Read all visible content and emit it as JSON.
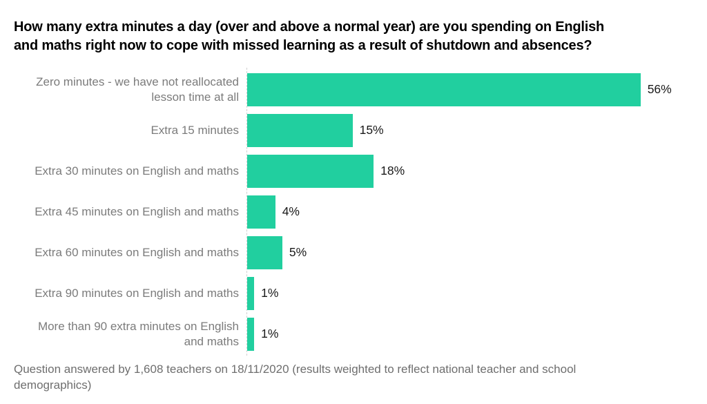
{
  "header": {
    "title": "How many extra minutes a day (over and above a normal year) are you spending on English and maths right now to cope with missed learning as a result of shutdown and absences?",
    "lines": [
      "How many extra minutes a day (over and above a normal year) are you spending on English",
      "and maths right now to cope with missed learning as a result of shutdown and absences?"
    ]
  },
  "footer": {
    "text": "Question answered by 1,608 teachers on 18/11/2020 (results weighted to reflect national teacher and school demographics)",
    "lines": [
      "Question answered by 1,608 teachers on 18/11/2020 (results weighted to reflect national teacher and school",
      "demographics)"
    ]
  },
  "colors": {
    "bar": "#21CF9F",
    "axis_line": "#cfcfcf",
    "title_text": "#000000",
    "category_label": "#7b7b7b",
    "value_label": "#1a1a1a",
    "footer_text": "#6e6e6e",
    "background": "#ffffff"
  },
  "chart_data": {
    "type": "bar",
    "orientation": "horizontal",
    "title": "How many extra minutes a day (over and above a normal year) are you spending on English and maths right now to cope with missed learning as a result of shutdown and absences?",
    "caption": "Question answered by 1,608 teachers on 18/11/2020 (results weighted to reflect national teacher and school demographics)",
    "categories": [
      "Zero minutes - we have not reallocated lesson time at all",
      "Extra 15 minutes",
      "Extra 30 minutes on English and maths",
      "Extra 45 minutes on English and maths",
      "Extra 60 minutes on English and maths",
      "Extra 90 minutes on English and maths",
      "More than 90 extra minutes on English and maths"
    ],
    "categories_display": [
      [
        "Zero minutes - we have not reallocated",
        "lesson time at all"
      ],
      [
        "Extra 15 minutes"
      ],
      [
        "Extra 30 minutes on English and maths"
      ],
      [
        "Extra 45 minutes on English and maths"
      ],
      [
        "Extra 60 minutes on English and maths"
      ],
      [
        "Extra 90 minutes on English and maths"
      ],
      [
        "More than 90 extra minutes on English",
        "and maths"
      ]
    ],
    "values": [
      56,
      15,
      18,
      4,
      5,
      1,
      1
    ],
    "value_labels": [
      "56%",
      "15%",
      "18%",
      "4%",
      "5%",
      "1%",
      "1%"
    ],
    "unit": "%",
    "xlim": [
      0,
      63.5
    ],
    "grid": false,
    "legend": false,
    "axis_style": "dashed zero baseline only, no ticks"
  }
}
